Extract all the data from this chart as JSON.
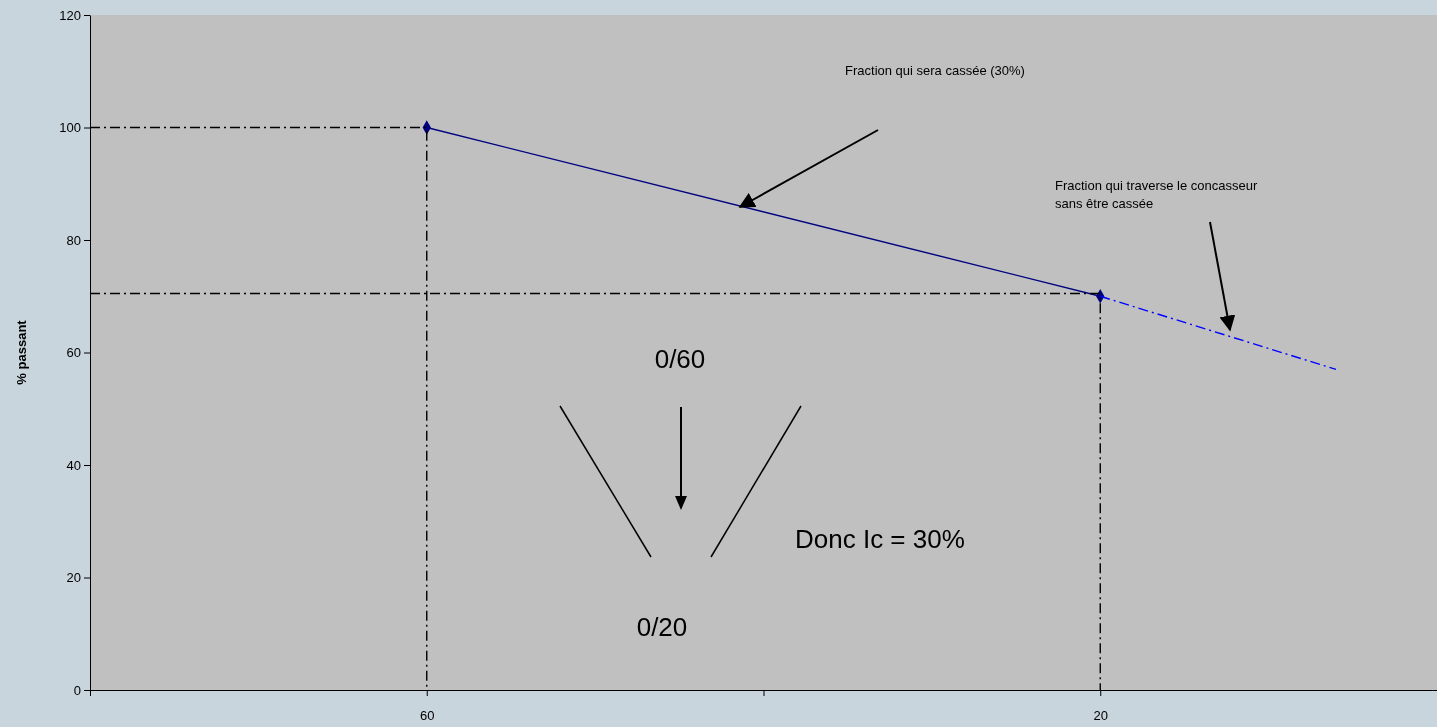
{
  "chart_data": {
    "type": "line",
    "ylabel": "% passant",
    "xlim": [
      80,
      0
    ],
    "xticks": [
      {
        "value": 80,
        "label": null
      },
      60,
      {
        "value": 40,
        "label": null
      },
      20,
      {
        "value": 0,
        "label": null
      }
    ],
    "ylim": [
      0,
      120
    ],
    "yticks": [
      0,
      20,
      40,
      60,
      80,
      100,
      120
    ],
    "grid": false,
    "series": [
      {
        "x": [
          60,
          20
        ],
        "values": [
          100,
          70
        ],
        "color": "#000080",
        "marker": "diamond",
        "line_style": "solid"
      },
      {
        "x": [
          20,
          6
        ],
        "values": [
          70,
          57
        ],
        "color": "#0000ff",
        "marker": "none",
        "line_style": "dashed"
      },
      {
        "x": [
          80,
          60,
          60
        ],
        "values": [
          100,
          100,
          0
        ],
        "color": "#000000",
        "marker": "none",
        "line_style": "dashed"
      },
      {
        "x": [
          80,
          20,
          20
        ],
        "values": [
          70.5,
          70.5,
          0
        ],
        "color": "#000000",
        "marker": "none",
        "line_style": "dashed"
      }
    ],
    "annotations": [
      "Fraction qui sera cassée (30%)",
      "Fraction qui traverse le concasseur sans être cassée",
      "0/60",
      "0/20",
      "Donc Ic = 30%"
    ]
  }
}
